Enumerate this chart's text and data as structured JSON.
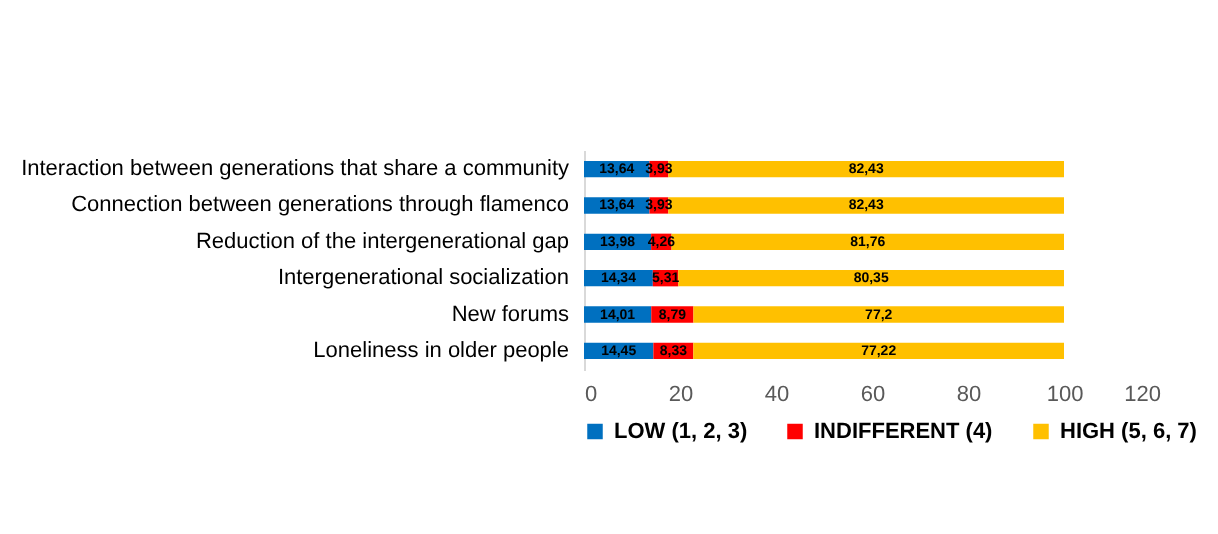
{
  "chart_data": {
    "type": "bar",
    "orientation": "horizontal",
    "stacked": true,
    "categories": [
      "Interaction between generations that share a community",
      "Connection between generations through flamenco",
      "Reduction of the intergenerational gap",
      "Intergenerational socialization",
      "New forums",
      "Loneliness in older people"
    ],
    "series": [
      {
        "name": "LOW (1, 2, 3)",
        "color": "#0070c0",
        "values": [
          13.64,
          13.64,
          13.98,
          14.34,
          14.01,
          14.45
        ],
        "value_labels": [
          "13,64",
          "13,64",
          "13,98",
          "14,34",
          "14,01",
          "14,45"
        ]
      },
      {
        "name": "INDIFFERENT (4)",
        "color": "#ff0000",
        "values": [
          3.93,
          3.93,
          4.26,
          5.31,
          8.79,
          8.33
        ],
        "value_labels": [
          "3,93",
          "3,93",
          "4,26",
          "5,31",
          "8,79",
          "8,33"
        ]
      },
      {
        "name": "HIGH (5, 6, 7)",
        "color": "#ffc000",
        "values": [
          82.43,
          82.43,
          81.76,
          80.35,
          77.2,
          77.22
        ],
        "value_labels": [
          "82,43",
          "82,43",
          "81,76",
          "80,35",
          "77,2",
          "77,22"
        ]
      }
    ],
    "xlim": [
      0,
      120
    ],
    "xticks": [
      0,
      20,
      40,
      60,
      80,
      100,
      120
    ],
    "legend": "bottom",
    "grid": false
  }
}
